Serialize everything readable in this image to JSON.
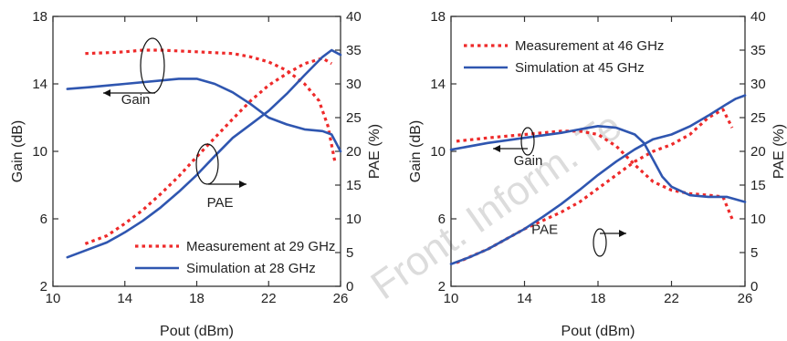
{
  "watermark": "Front. Inform. Te",
  "colors": {
    "measurement": "#ee2a2a",
    "simulation": "#2f56b0",
    "axis": "#333333",
    "text": "#222222"
  },
  "chart_data": [
    {
      "type": "line",
      "xlabel": "Pout (dBm)",
      "ylabel": "Gain (dB)",
      "y2label": "PAE (%)",
      "xlim": [
        10,
        26
      ],
      "ylim": [
        2,
        18
      ],
      "y2lim": [
        0,
        40
      ],
      "xticks": [
        10,
        14,
        18,
        22,
        26
      ],
      "yticks": [
        2,
        6,
        10,
        14,
        18
      ],
      "y2ticks": [
        0,
        5,
        10,
        15,
        20,
        25,
        30,
        35,
        40
      ],
      "grid": false,
      "legend_position": "bottom-right",
      "series": [
        {
          "name": "Measurement at 29 GHz",
          "quantity": "gain",
          "axis": "left",
          "style": "dotted",
          "x": [
            11.8,
            13,
            14,
            15,
            16,
            17,
            18,
            19,
            20,
            21,
            22,
            23,
            24,
            24.8,
            25.3,
            25.7
          ],
          "y": [
            15.8,
            15.85,
            15.9,
            16.0,
            16.0,
            15.95,
            15.9,
            15.85,
            15.8,
            15.6,
            15.3,
            14.8,
            14.0,
            13.0,
            11.5,
            9.3
          ]
        },
        {
          "name": "Measurement at 29 GHz",
          "quantity": "pae",
          "axis": "right",
          "style": "dotted",
          "x": [
            11.8,
            13,
            14,
            15,
            16,
            17,
            18,
            19,
            20,
            21,
            22,
            23,
            24,
            25,
            25.5
          ],
          "y": [
            6.3,
            7.5,
            9.3,
            11.3,
            13.7,
            16.3,
            19.2,
            22.0,
            24.8,
            27.5,
            29.8,
            31.5,
            33.0,
            33.8,
            33.0
          ]
        },
        {
          "name": "Simulation at 28 GHz",
          "quantity": "gain",
          "axis": "left",
          "style": "solid",
          "x": [
            10.8,
            12,
            14,
            16,
            17,
            18,
            19,
            20,
            21,
            22,
            23,
            24,
            25,
            25.5,
            26
          ],
          "y": [
            13.7,
            13.8,
            14.0,
            14.2,
            14.3,
            14.3,
            14.0,
            13.5,
            12.8,
            12.0,
            11.6,
            11.3,
            11.2,
            11.0,
            10.0
          ]
        },
        {
          "name": "Simulation at 28 GHz",
          "quantity": "pae",
          "axis": "right",
          "style": "solid",
          "x": [
            10.8,
            12,
            13,
            14,
            15,
            16,
            17,
            18,
            19,
            20,
            21,
            22,
            23,
            24,
            25,
            25.5,
            26
          ],
          "y": [
            4.3,
            5.5,
            6.5,
            8.0,
            9.7,
            11.7,
            14.0,
            16.5,
            19.3,
            22.0,
            24.0,
            26.0,
            28.5,
            31.3,
            34.0,
            35.0,
            34.3
          ]
        }
      ],
      "legend": [
        {
          "label": "Measurement at 29 GHz",
          "style": "dotted"
        },
        {
          "label": "Simulation at 28 GHz",
          "style": "solid"
        }
      ],
      "annotations": [
        {
          "text": "Gain",
          "x": 14.6,
          "y": 12.8
        },
        {
          "text": "PAE",
          "x": 19.3,
          "y": 6.7
        }
      ]
    },
    {
      "type": "line",
      "xlabel": "Pout (dBm)",
      "ylabel": "Gain (dB)",
      "y2label": "PAE (%)",
      "xlim": [
        10,
        26
      ],
      "ylim": [
        2,
        18
      ],
      "y2lim": [
        0,
        40
      ],
      "xticks": [
        10,
        14,
        18,
        22,
        26
      ],
      "yticks": [
        2,
        6,
        10,
        14,
        18
      ],
      "y2ticks": [
        0,
        5,
        10,
        15,
        20,
        25,
        30,
        35,
        40
      ],
      "grid": false,
      "legend_position": "top-left",
      "series": [
        {
          "name": "Measurement at 46 GHz",
          "quantity": "gain",
          "axis": "left",
          "style": "dotted",
          "x": [
            10.3,
            12,
            14,
            16,
            17,
            18,
            19,
            20,
            21,
            22,
            23,
            24,
            24.8,
            25.3
          ],
          "y": [
            10.6,
            10.8,
            11.0,
            11.2,
            11.2,
            11.0,
            10.3,
            9.2,
            8.2,
            7.7,
            7.5,
            7.4,
            7.3,
            6.0
          ]
        },
        {
          "name": "Measurement at 46 GHz",
          "quantity": "pae",
          "axis": "right",
          "style": "dotted",
          "x": [
            10.3,
            12,
            14,
            16,
            17,
            18,
            19,
            20,
            21,
            22,
            23,
            24,
            24.8,
            25.3
          ],
          "y": [
            3.5,
            5.5,
            8.5,
            11.0,
            12.5,
            14.5,
            16.5,
            18.5,
            20.0,
            21.0,
            22.5,
            25.0,
            26.2,
            23.5
          ]
        },
        {
          "name": "Simulation at 45 GHz",
          "quantity": "gain",
          "axis": "left",
          "style": "solid",
          "x": [
            10,
            12,
            14,
            16,
            17,
            18,
            19,
            20,
            20.5,
            21,
            21.5,
            22,
            23,
            24,
            25,
            26
          ],
          "y": [
            10.1,
            10.5,
            10.8,
            11.1,
            11.3,
            11.5,
            11.4,
            11.0,
            10.5,
            9.5,
            8.5,
            7.9,
            7.4,
            7.3,
            7.3,
            7.0
          ]
        },
        {
          "name": "Simulation at 45 GHz",
          "quantity": "pae",
          "axis": "right",
          "style": "solid",
          "x": [
            10,
            11,
            12,
            13,
            14,
            15,
            16,
            17,
            18,
            19,
            20,
            21,
            22,
            23,
            24,
            25,
            25.5,
            26
          ],
          "y": [
            3.3,
            4.3,
            5.5,
            7.0,
            8.5,
            10.3,
            12.2,
            14.3,
            16.5,
            18.5,
            20.3,
            21.8,
            22.5,
            23.7,
            25.3,
            27.0,
            27.8,
            28.3
          ]
        }
      ],
      "legend": [
        {
          "label": "Measurement at 46 GHz",
          "style": "dotted"
        },
        {
          "label": "Simulation at 45 GHz",
          "style": "solid"
        }
      ],
      "annotations": [
        {
          "text": "Gain",
          "x": 14.2,
          "y": 9.2
        },
        {
          "text": "PAE",
          "x": 15.1,
          "y": 5.1
        }
      ]
    }
  ]
}
